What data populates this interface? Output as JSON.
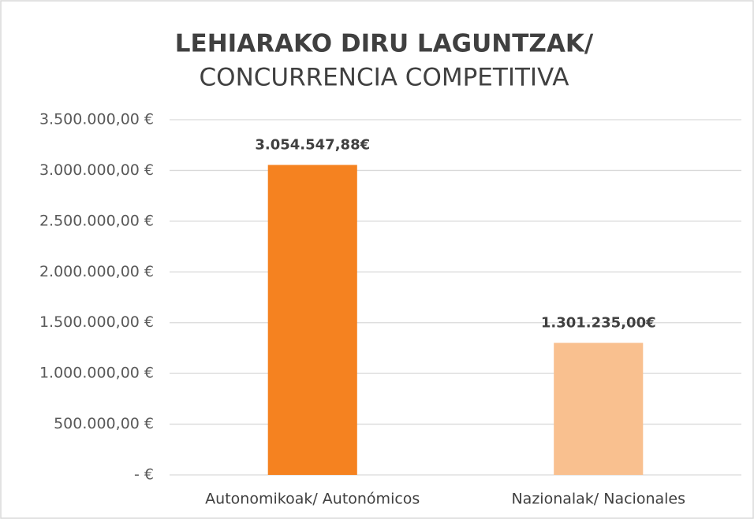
{
  "chart_data": {
    "type": "bar",
    "title": "LEHIARAKO DIRU LAGUNTZAK/",
    "subtitle": "CONCURRENCIA COMPETITIVA",
    "categories": [
      "Autonomikoak/ Autonómicos",
      "Nazionalak/ Nacionales"
    ],
    "values": [
      3054547.88,
      1301235
    ],
    "value_labels": [
      "3.054.547,88€",
      "1.301.235,00€"
    ],
    "colors": [
      "#f58220",
      "#f9c08f"
    ],
    "ylim": [
      0,
      3500000
    ],
    "yticks": [
      {
        "value": 0,
        "label": "-  €"
      },
      {
        "value": 500000,
        "label": "500.000,00 €"
      },
      {
        "value": 1000000,
        "label": "1.000.000,00 €"
      },
      {
        "value": 1500000,
        "label": "1.500.000,00 €"
      },
      {
        "value": 2000000,
        "label": "2.000.000,00 €"
      },
      {
        "value": 2500000,
        "label": "2.500.000,00 €"
      },
      {
        "value": 3000000,
        "label": "3.000.000,00 €"
      },
      {
        "value": 3500000,
        "label": "3.500.000,00 €"
      }
    ],
    "grid": true
  }
}
